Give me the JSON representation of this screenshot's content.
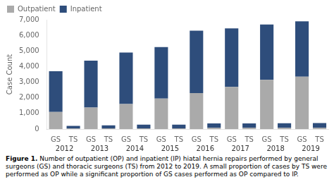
{
  "chart_data": {
    "type": "bar",
    "stacked": true,
    "categories": [
      "GS",
      "TS",
      "GS",
      "TS",
      "GS",
      "TS",
      "GS",
      "TS",
      "GS",
      "TS",
      "GS",
      "TS",
      "GS",
      "TS",
      "GS",
      "TS"
    ],
    "annotations": [
      "2012",
      "2013",
      "2014",
      "2015",
      "2016",
      "2017",
      "2018",
      "2019"
    ],
    "series": [
      {
        "name": "Outpatient",
        "color": "#aaaaaa",
        "values": [
          1100,
          30,
          1380,
          40,
          1600,
          50,
          1950,
          50,
          2300,
          80,
          2700,
          80,
          3150,
          80,
          3350,
          80
        ]
      },
      {
        "name": "Inpatient",
        "color": "#2e4d7b",
        "values": [
          2600,
          170,
          3000,
          200,
          3300,
          230,
          3300,
          230,
          4000,
          280,
          3750,
          280,
          3550,
          290,
          3550,
          300
        ]
      }
    ],
    "ylabel": "Case Count",
    "ylim": [
      0,
      7000
    ],
    "yticks": [
      0,
      {
        "value": 1000,
        "label": "1,000"
      },
      {
        "value": 2000,
        "label": "2,000"
      },
      {
        "value": 3000,
        "label": "3,000"
      },
      {
        "value": 4000,
        "label": "4,000"
      },
      {
        "value": 5000,
        "label": "5,000"
      },
      {
        "value": 6000,
        "label": "6,000"
      },
      {
        "value": 7000,
        "label": "7,000"
      }
    ],
    "grid": false,
    "legend": "upper left",
    "caption": [
      "Figure 1.",
      " Number of outpatient (OP) and inpatient (IP) hiatal hernia repairs performed by general surgeons (GS) and thoracic surgeons (TS) from 2012 to 2019. A small proportion of cases by TS were performed as OP while a significant proportion of GS cases performed as OP compared to IP."
    ]
  }
}
